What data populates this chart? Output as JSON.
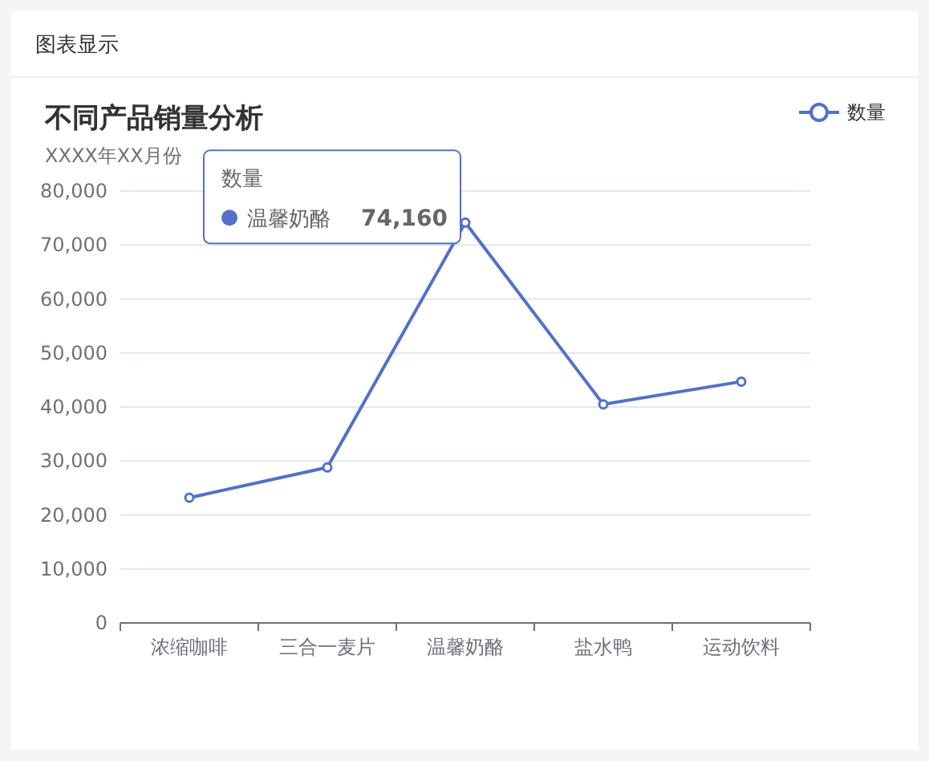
{
  "chart_data": {
    "type": "line",
    "title": "不同产品销量分析",
    "subtitle": "XXXX年XX月份",
    "annotations": [
      "图表显示"
    ],
    "categories": [
      "浓缩咖啡",
      "三合一麦片",
      "温馨奶酪",
      "盐水鸭",
      "运动饮料"
    ],
    "series": [
      {
        "name": "数量",
        "color": "#5470c6",
        "values": [
          23200,
          28800,
          74160,
          40500,
          44700
        ],
        "value_labels": [
          null,
          null,
          "74,160",
          null,
          null
        ]
      }
    ],
    "ylim": [
      0,
      80000
    ],
    "yticks": [
      {
        "value": 0,
        "label": "0"
      },
      {
        "value": 10000,
        "label": "10,000"
      },
      {
        "value": 20000,
        "label": "20,000"
      },
      {
        "value": 30000,
        "label": "30,000"
      },
      {
        "value": 40000,
        "label": "40,000"
      },
      {
        "value": 50000,
        "label": "50,000"
      },
      {
        "value": 60000,
        "label": "60,000"
      },
      {
        "value": 70000,
        "label": "70,000"
      },
      {
        "value": 80000,
        "label": "80,000"
      }
    ],
    "grid": "y",
    "legend": "top right",
    "marker": "circle",
    "line_style": "solid"
  }
}
